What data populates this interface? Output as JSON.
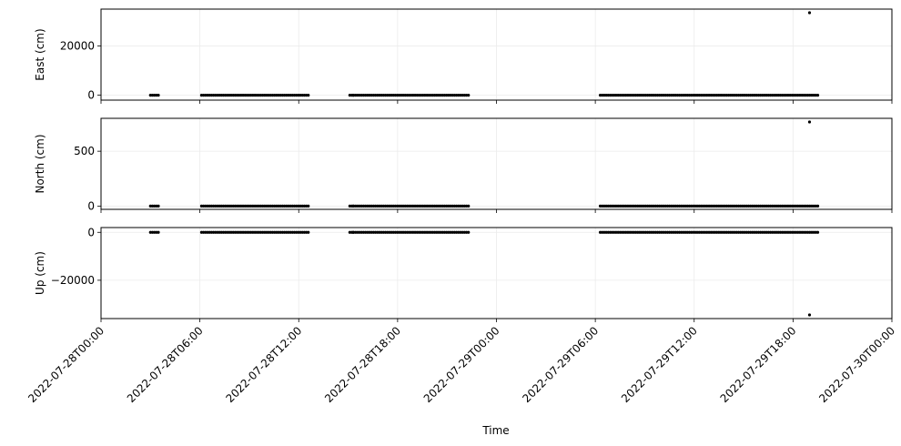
{
  "chart_data": {
    "type": "scatter",
    "xlabel": "Time",
    "x_ticks": [
      "2022-07-28T00:00",
      "2022-07-28T06:00",
      "2022-07-28T12:00",
      "2022-07-28T18:00",
      "2022-07-29T00:00",
      "2022-07-29T06:00",
      "2022-07-29T12:00",
      "2022-07-29T18:00",
      "2022-07-30T00:00"
    ],
    "xlim_hours": [
      0,
      48
    ],
    "grid": true,
    "marker_color": "#000000",
    "segments_hours": [
      [
        3.0,
        3.5
      ],
      [
        6.1,
        12.6
      ],
      [
        15.1,
        22.3
      ],
      [
        30.3,
        43.6
      ]
    ],
    "isolated_points_hours": [
      15.3
    ],
    "panels": [
      {
        "ylabel": "East (cm)",
        "ylim": [
          -2000,
          35000
        ],
        "yticks": [
          0,
          20000
        ],
        "ytick_labels": [
          "0",
          "20000"
        ],
        "baseline": 0,
        "outlier": {
          "x_hours": 43.0,
          "y": 35000
        }
      },
      {
        "ylabel": "North (cm)",
        "ylim": [
          -30,
          800
        ],
        "yticks": [
          0,
          500
        ],
        "ytick_labels": [
          "0",
          "500"
        ],
        "baseline": 0,
        "outlier": {
          "x_hours": 43.0,
          "y": 780
        }
      },
      {
        "ylabel": "Up (cm)",
        "ylim": [
          -36000,
          2000
        ],
        "yticks": [
          0,
          -20000
        ],
        "ytick_labels": [
          "0",
          "−20000"
        ],
        "baseline": 0,
        "outlier": {
          "x_hours": 43.0,
          "y": -35000
        }
      }
    ]
  }
}
